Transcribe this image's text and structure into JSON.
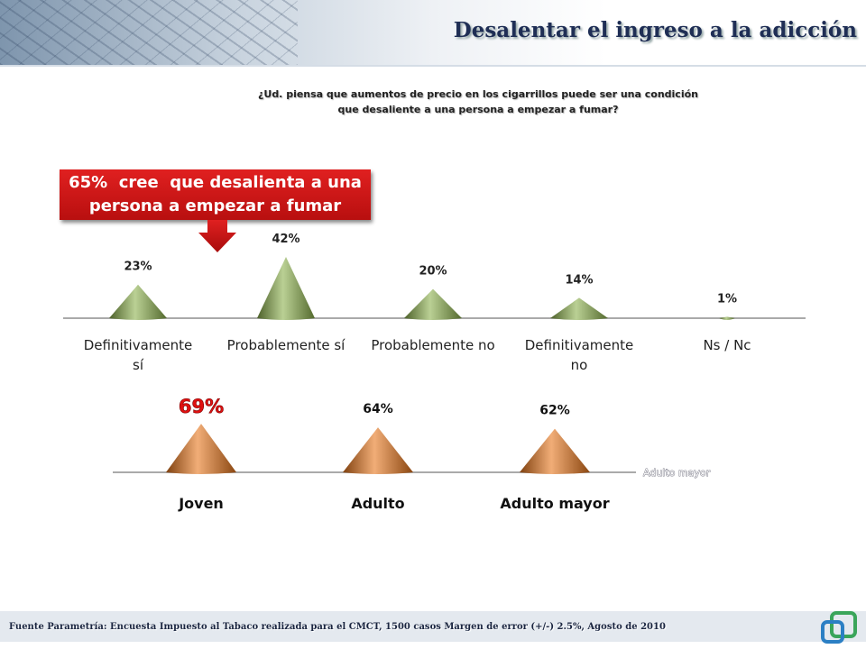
{
  "header": {
    "title": "Desalentar el ingreso a la adicción"
  },
  "question": [
    "¿Ud. piensa que aumentos de precio en los cigarrillos puede ser una condición",
    "que desaliente a una persona a empezar a fumar?"
  ],
  "callout": [
    "65%  cree  que desalienta a una",
    "persona a empezar a fumar"
  ],
  "chart_data": [
    {
      "type": "cone",
      "categories": [
        "Definitivamente sí",
        "Probablemente sí",
        "Probablemente no",
        "Definitivamente no",
        "Ns / Nc"
      ],
      "values": [
        23,
        42,
        20,
        14,
        1
      ],
      "value_labels": [
        "23%",
        "42%",
        "20%",
        "14%",
        "1%"
      ],
      "color": "#8cb04c"
    },
    {
      "type": "cone",
      "categories": [
        "Joven",
        "Adulto",
        "Adulto mayor"
      ],
      "values": [
        69,
        64,
        62
      ],
      "value_labels": [
        "69%",
        "64%",
        "62%"
      ],
      "color": "#e8761c",
      "annotation": "Adulto mayor"
    }
  ],
  "footer": "Fuente Parametría: Encuesta Impuesto al Tabaco realizada para el CMCT, 1500 casos Margen de error (+/-) 2.5%, Agosto de 2010"
}
